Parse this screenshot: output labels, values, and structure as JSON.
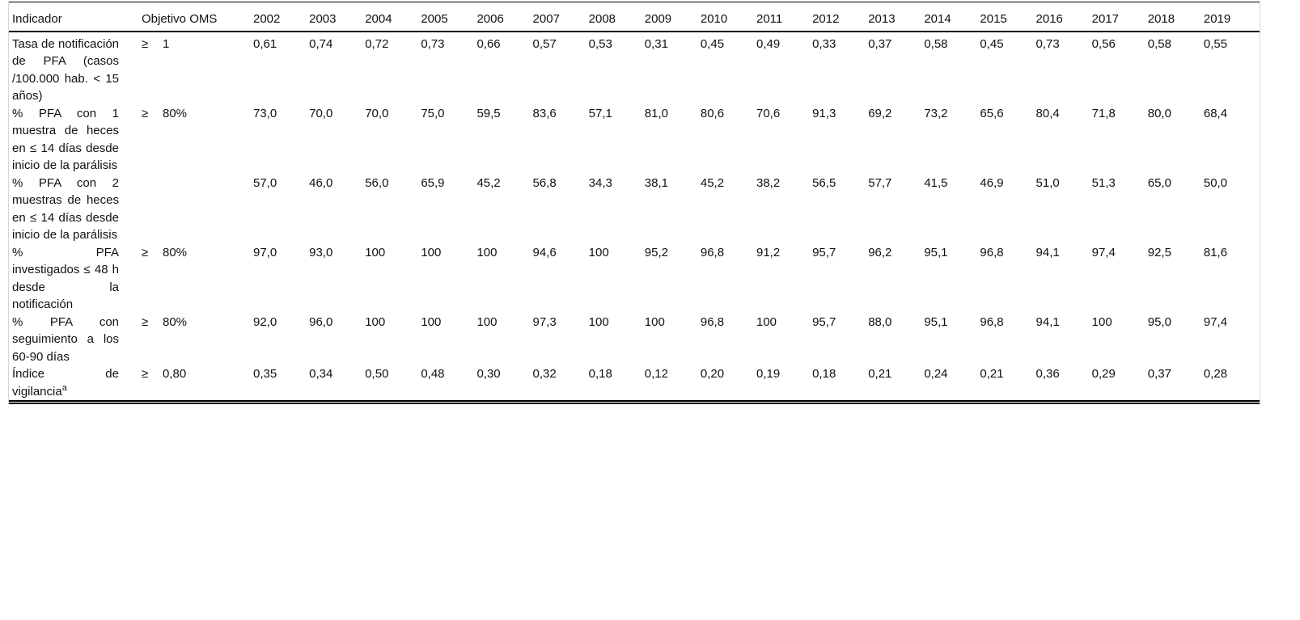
{
  "table": {
    "header": {
      "indicator": "Indicador",
      "objective": "Objetivo OMS",
      "years": [
        "2002",
        "2003",
        "2004",
        "2005",
        "2006",
        "2007",
        "2008",
        "2009",
        "2010",
        "2011",
        "2012",
        "2013",
        "2014",
        "2015",
        "2016",
        "2017",
        "2018",
        "2019"
      ]
    },
    "rows": [
      {
        "indicator": "Tasa de notificación de PFA (casos /100.000 hab. < 15 años)",
        "objective_symbol": "≥",
        "objective_value": "1",
        "superscript": "",
        "values": [
          "0,61",
          "0,74",
          "0,72",
          "0,73",
          "0,66",
          "0,57",
          "0,53",
          "0,31",
          "0,45",
          "0,49",
          "0,33",
          "0,37",
          "0,58",
          "0,45",
          "0,73",
          "0,56",
          "0,58",
          "0,55"
        ]
      },
      {
        "indicator": "% PFA con 1 muestra de heces en ≤ 14 días desde inicio de la parálisis",
        "objective_symbol": "≥",
        "objective_value": "80%",
        "superscript": "",
        "values": [
          "73,0",
          "70,0",
          "70,0",
          "75,0",
          "59,5",
          "83,6",
          "57,1",
          "81,0",
          "80,6",
          "70,6",
          "91,3",
          "69,2",
          "73,2",
          "65,6",
          "80,4",
          "71,8",
          "80,0",
          "68,4"
        ]
      },
      {
        "indicator": "% PFA con 2 muestras de heces en ≤ 14 días desde inicio de la parálisis",
        "objective_symbol": "",
        "objective_value": "",
        "superscript": "",
        "values": [
          "57,0",
          "46,0",
          "56,0",
          "65,9",
          "45,2",
          "56,8",
          "34,3",
          "38,1",
          "45,2",
          "38,2",
          "56,5",
          "57,7",
          "41,5",
          "46,9",
          "51,0",
          "51,3",
          "65,0",
          "50,0"
        ]
      },
      {
        "indicator": "% PFA investigados ≤ 48 h desde la notificación",
        "objective_symbol": "≥",
        "objective_value": "80%",
        "superscript": "",
        "values": [
          "97,0",
          "93,0",
          "100",
          "100",
          "100",
          "94,6",
          "100",
          "95,2",
          "96,8",
          "91,2",
          "95,7",
          "96,2",
          "95,1",
          "96,8",
          "94,1",
          "97,4",
          "92,5",
          "81,6"
        ]
      },
      {
        "indicator": "% PFA con seguimiento a los 60-90 días",
        "objective_symbol": "≥",
        "objective_value": "80%",
        "superscript": "",
        "values": [
          "92,0",
          "96,0",
          "100",
          "100",
          "100",
          "97,3",
          "100",
          "100",
          "96,8",
          "100",
          "95,7",
          "88,0",
          "95,1",
          "96,8",
          "94,1",
          "100",
          "95,0",
          "97,4"
        ]
      },
      {
        "indicator": "Índice de vigilancia",
        "objective_symbol": "≥",
        "objective_value": "0,80",
        "superscript": "a",
        "values": [
          "0,35",
          "0,34",
          "0,50",
          "0,48",
          "0,30",
          "0,32",
          "0,18",
          "0,12",
          "0,20",
          "0,19",
          "0,18",
          "0,21",
          "0,24",
          "0,21",
          "0,36",
          "0,29",
          "0,37",
          "0,28"
        ]
      }
    ]
  },
  "colors": {
    "rule": "#000000",
    "side_border": "#d6d6d6",
    "text": "#111111",
    "background": "#ffffff"
  }
}
